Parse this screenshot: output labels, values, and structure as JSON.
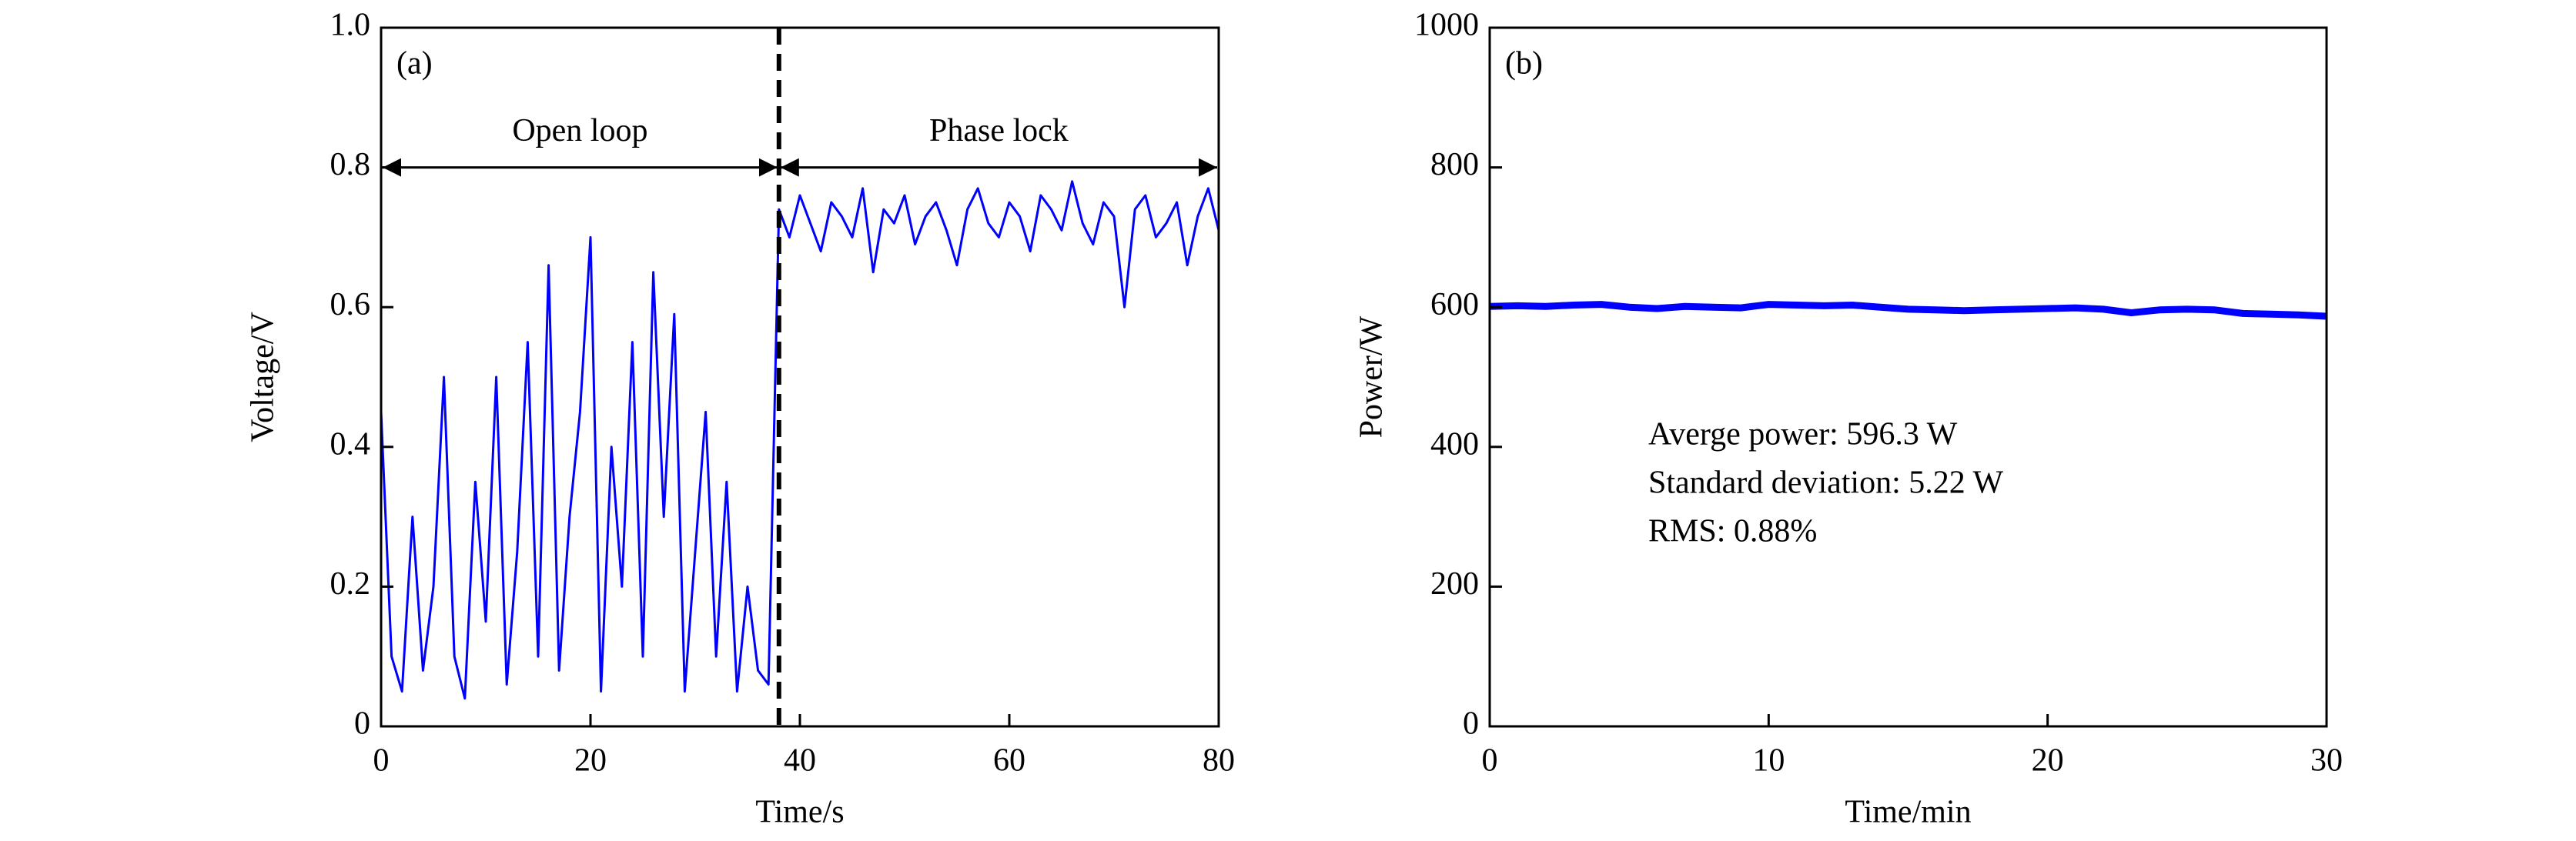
{
  "chart_data": [
    {
      "type": "line",
      "panel": "(a)",
      "x_label": "Time/s",
      "y_label": "Voltage/V",
      "xlim": [
        0,
        80
      ],
      "ylim": [
        0,
        1
      ],
      "xticks": [
        0,
        20,
        40,
        60,
        80
      ],
      "yticks": [
        0,
        0.2,
        0.4,
        0.6,
        0.8,
        {
          "value": 1,
          "label": "1.0"
        }
      ],
      "divider_x": 38,
      "region_y": 0.8,
      "regions": [
        {
          "label": "Open loop",
          "x": [
            0,
            38
          ]
        },
        {
          "label": "Phase lock",
          "x": [
            38,
            80
          ]
        }
      ],
      "series": [
        {
          "color": "#0000ff",
          "x": [
            0,
            1,
            2,
            3,
            4,
            5,
            6,
            7,
            8,
            9,
            10,
            11,
            12,
            13,
            14,
            15,
            16,
            17,
            18,
            19,
            20,
            21,
            22,
            23,
            24,
            25,
            26,
            27,
            28,
            29,
            30,
            31,
            32,
            33,
            34,
            35,
            36,
            37,
            38,
            39,
            40,
            41,
            42,
            43,
            44,
            45,
            46,
            47,
            48,
            49,
            50,
            51,
            52,
            53,
            54,
            55,
            56,
            57,
            58,
            59,
            60,
            61,
            62,
            63,
            64,
            65,
            66,
            67,
            68,
            69,
            70,
            71,
            72,
            73,
            74,
            75,
            76,
            77,
            78,
            79,
            80
          ],
          "values": [
            0.45,
            0.1,
            0.05,
            0.3,
            0.08,
            0.2,
            0.5,
            0.1,
            0.04,
            0.35,
            0.15,
            0.5,
            0.06,
            0.25,
            0.55,
            0.1,
            0.66,
            0.08,
            0.3,
            0.45,
            0.7,
            0.05,
            0.4,
            0.2,
            0.55,
            0.1,
            0.65,
            0.3,
            0.59,
            0.05,
            0.25,
            0.45,
            0.1,
            0.35,
            0.05,
            0.2,
            0.08,
            0.06,
            0.74,
            0.7,
            0.76,
            0.72,
            0.68,
            0.75,
            0.73,
            0.7,
            0.77,
            0.65,
            0.74,
            0.72,
            0.76,
            0.69,
            0.73,
            0.75,
            0.71,
            0.66,
            0.74,
            0.77,
            0.72,
            0.7,
            0.75,
            0.73,
            0.68,
            0.76,
            0.74,
            0.71,
            0.78,
            0.72,
            0.69,
            0.75,
            0.73,
            0.6,
            0.74,
            0.76,
            0.7,
            0.72,
            0.75,
            0.66,
            0.73,
            0.77,
            0.71
          ]
        }
      ]
    },
    {
      "type": "line",
      "panel": "(b)",
      "x_label": "Time/min",
      "y_label": "Power/W",
      "xlim": [
        0,
        30
      ],
      "ylim": [
        0,
        1000
      ],
      "xticks": [
        0,
        10,
        20,
        30
      ],
      "yticks": [
        0,
        200,
        400,
        600,
        800,
        1000
      ],
      "annotations": [
        "Averge power: 596.3 W",
        "Standard deviation: 5.22 W",
        "RMS: 0.88%"
      ],
      "series": [
        {
          "color": "#0000ff",
          "x": [
            0,
            1,
            2,
            3,
            4,
            5,
            6,
            7,
            8,
            9,
            10,
            11,
            12,
            13,
            14,
            15,
            16,
            17,
            18,
            19,
            20,
            21,
            22,
            23,
            24,
            25,
            26,
            27,
            28,
            29,
            30
          ],
          "values": [
            601,
            602,
            601,
            603,
            604,
            600,
            598,
            601,
            600,
            599,
            604,
            603,
            602,
            603,
            600,
            597,
            596,
            595,
            596,
            597,
            598,
            599,
            597,
            592,
            596,
            597,
            596,
            591,
            590,
            589,
            587
          ]
        }
      ]
    }
  ]
}
